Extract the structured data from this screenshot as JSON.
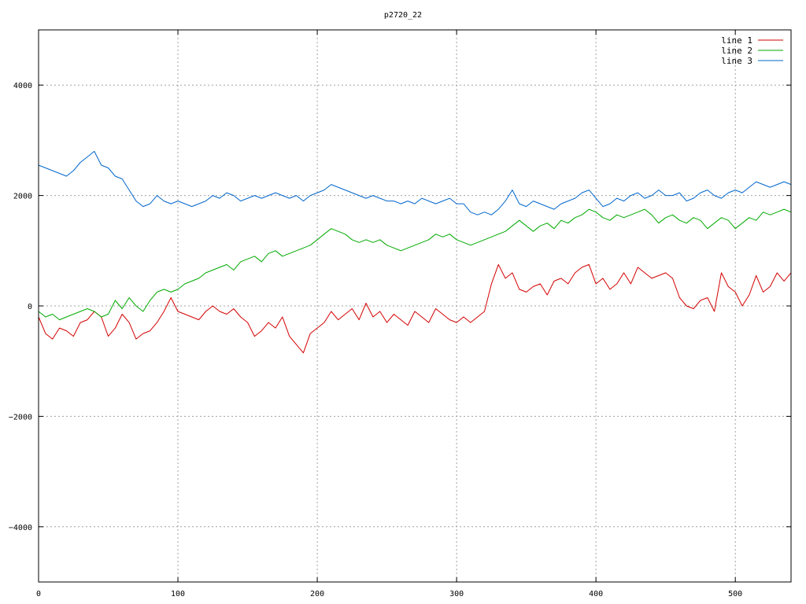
{
  "chart_data": {
    "type": "line",
    "title": "p2720_22",
    "xlabel": "",
    "ylabel": "",
    "xlim": [
      0,
      540
    ],
    "ylim": [
      -5000,
      5000
    ],
    "xticks": [
      0,
      100,
      200,
      300,
      400,
      500
    ],
    "yticks": [
      -4000,
      -2000,
      0,
      2000,
      4000
    ],
    "ytick_labels": [
      "−4000",
      "−2000",
      "0",
      "2000",
      "4000"
    ],
    "grid": true,
    "legend_position": "top-right",
    "series": [
      {
        "name": "line 1",
        "color": "#d40000",
        "x": [
          0,
          5,
          10,
          15,
          20,
          25,
          30,
          35,
          40,
          45,
          50,
          55,
          60,
          65,
          70,
          75,
          80,
          85,
          90,
          95,
          100,
          105,
          110,
          115,
          120,
          125,
          130,
          135,
          140,
          145,
          150,
          155,
          160,
          165,
          170,
          175,
          180,
          185,
          190,
          195,
          200,
          205,
          210,
          215,
          220,
          225,
          230,
          235,
          240,
          245,
          250,
          255,
          260,
          265,
          270,
          275,
          280,
          285,
          290,
          295,
          300,
          305,
          310,
          315,
          320,
          325,
          330,
          335,
          340,
          345,
          350,
          355,
          360,
          365,
          370,
          375,
          380,
          385,
          390,
          395,
          400,
          405,
          410,
          415,
          420,
          425,
          430,
          435,
          440,
          445,
          450,
          455,
          460,
          465,
          470,
          475,
          480,
          485,
          490,
          495,
          500,
          505,
          510,
          515,
          520,
          525,
          530,
          535,
          540
        ],
        "values": [
          -200,
          -500,
          -600,
          -400,
          -450,
          -550,
          -300,
          -250,
          -100,
          -200,
          -550,
          -400,
          -150,
          -300,
          -600,
          -500,
          -450,
          -300,
          -100,
          150,
          -100,
          -150,
          -200,
          -250,
          -100,
          0,
          -100,
          -150,
          -50,
          -200,
          -300,
          -550,
          -450,
          -300,
          -400,
          -200,
          -550,
          -700,
          -850,
          -500,
          -400,
          -300,
          -100,
          -250,
          -150,
          -50,
          -250,
          50,
          -200,
          -100,
          -300,
          -150,
          -250,
          -350,
          -100,
          -200,
          -300,
          -50,
          -150,
          -250,
          -300,
          -200,
          -300,
          -200,
          -100,
          400,
          750,
          500,
          600,
          300,
          250,
          350,
          400,
          200,
          450,
          500,
          400,
          600,
          700,
          750,
          400,
          500,
          300,
          400,
          600,
          400,
          700,
          600,
          500,
          550,
          600,
          500,
          150,
          0,
          -50,
          100,
          150,
          -100,
          600,
          350,
          250,
          0,
          200,
          550,
          250,
          350,
          600,
          450,
          600
        ]
      },
      {
        "name": "line 2",
        "color": "#00aa00",
        "x": [
          0,
          5,
          10,
          15,
          20,
          25,
          30,
          35,
          40,
          45,
          50,
          55,
          60,
          65,
          70,
          75,
          80,
          85,
          90,
          95,
          100,
          105,
          110,
          115,
          120,
          125,
          130,
          135,
          140,
          145,
          150,
          155,
          160,
          165,
          170,
          175,
          180,
          185,
          190,
          195,
          200,
          205,
          210,
          215,
          220,
          225,
          230,
          235,
          240,
          245,
          250,
          255,
          260,
          265,
          270,
          275,
          280,
          285,
          290,
          295,
          300,
          305,
          310,
          315,
          320,
          325,
          330,
          335,
          340,
          345,
          350,
          355,
          360,
          365,
          370,
          375,
          380,
          385,
          390,
          395,
          400,
          405,
          410,
          415,
          420,
          425,
          430,
          435,
          440,
          445,
          450,
          455,
          460,
          465,
          470,
          475,
          480,
          485,
          490,
          495,
          500,
          505,
          510,
          515,
          520,
          525,
          530,
          535,
          540
        ],
        "values": [
          -100,
          -200,
          -150,
          -250,
          -200,
          -150,
          -100,
          -50,
          -100,
          -200,
          -150,
          100,
          -50,
          150,
          0,
          -100,
          100,
          250,
          300,
          250,
          300,
          400,
          450,
          500,
          600,
          650,
          700,
          750,
          650,
          800,
          850,
          900,
          800,
          950,
          1000,
          900,
          950,
          1000,
          1050,
          1100,
          1200,
          1300,
          1400,
          1350,
          1300,
          1200,
          1150,
          1200,
          1150,
          1200,
          1100,
          1050,
          1000,
          1050,
          1100,
          1150,
          1200,
          1300,
          1250,
          1300,
          1200,
          1150,
          1100,
          1150,
          1200,
          1250,
          1300,
          1350,
          1450,
          1550,
          1450,
          1350,
          1450,
          1500,
          1400,
          1550,
          1500,
          1600,
          1650,
          1750,
          1700,
          1600,
          1550,
          1650,
          1600,
          1650,
          1700,
          1750,
          1650,
          1500,
          1600,
          1650,
          1550,
          1500,
          1600,
          1550,
          1400,
          1500,
          1600,
          1550,
          1400,
          1500,
          1600,
          1550,
          1700,
          1650,
          1700,
          1750,
          1700
        ]
      },
      {
        "name": "line 3",
        "color": "#0066cc",
        "x": [
          0,
          5,
          10,
          15,
          20,
          25,
          30,
          35,
          40,
          45,
          50,
          55,
          60,
          65,
          70,
          75,
          80,
          85,
          90,
          95,
          100,
          105,
          110,
          115,
          120,
          125,
          130,
          135,
          140,
          145,
          150,
          155,
          160,
          165,
          170,
          175,
          180,
          185,
          190,
          195,
          200,
          205,
          210,
          215,
          220,
          225,
          230,
          235,
          240,
          245,
          250,
          255,
          260,
          265,
          270,
          275,
          280,
          285,
          290,
          295,
          300,
          305,
          310,
          315,
          320,
          325,
          330,
          335,
          340,
          345,
          350,
          355,
          360,
          365,
          370,
          375,
          380,
          385,
          390,
          395,
          400,
          405,
          410,
          415,
          420,
          425,
          430,
          435,
          440,
          445,
          450,
          455,
          460,
          465,
          470,
          475,
          480,
          485,
          490,
          495,
          500,
          505,
          510,
          515,
          520,
          525,
          530,
          535,
          540
        ],
        "values": [
          2550,
          2500,
          2450,
          2400,
          2350,
          2450,
          2600,
          2700,
          2800,
          2550,
          2500,
          2350,
          2300,
          2100,
          1900,
          1800,
          1850,
          2000,
          1900,
          1850,
          1900,
          1850,
          1800,
          1850,
          1900,
          2000,
          1950,
          2050,
          2000,
          1900,
          1950,
          2000,
          1950,
          2000,
          2050,
          2000,
          1950,
          2000,
          1900,
          2000,
          2050,
          2100,
          2200,
          2150,
          2100,
          2050,
          2000,
          1950,
          2000,
          1950,
          1900,
          1900,
          1850,
          1900,
          1850,
          1950,
          1900,
          1850,
          1900,
          1950,
          1850,
          1850,
          1700,
          1650,
          1700,
          1650,
          1750,
          1900,
          2100,
          1850,
          1800,
          1900,
          1850,
          1800,
          1750,
          1850,
          1900,
          1950,
          2050,
          2100,
          1950,
          1800,
          1850,
          1950,
          1900,
          2000,
          2050,
          1950,
          2000,
          2100,
          2000,
          2000,
          2050,
          1900,
          1950,
          2050,
          2100,
          2000,
          1950,
          2050,
          2100,
          2050,
          2150,
          2250,
          2200,
          2150,
          2200,
          2250,
          2200
        ]
      }
    ]
  }
}
